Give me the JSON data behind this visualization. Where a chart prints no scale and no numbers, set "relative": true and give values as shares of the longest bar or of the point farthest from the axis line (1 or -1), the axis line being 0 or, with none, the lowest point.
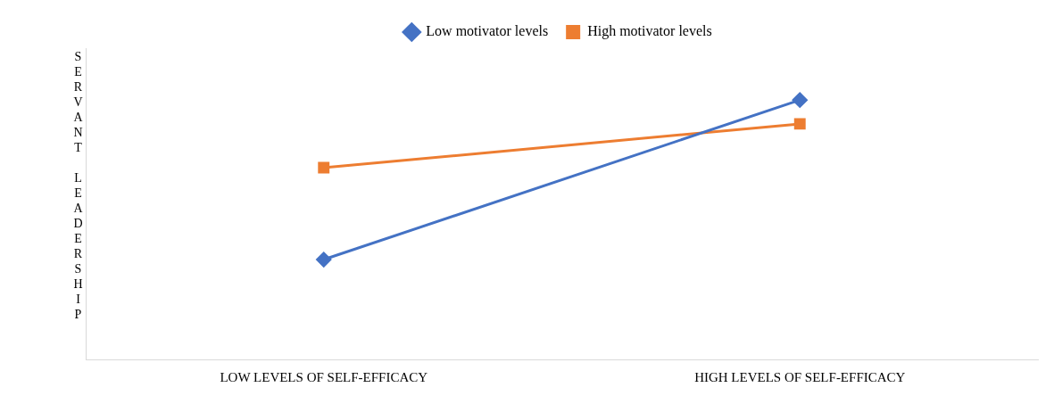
{
  "chart_data": {
    "type": "line",
    "ylabel": "SERVANT LEADERSHIP",
    "categories": [
      "LOW LEVELS OF SELF-EFFICACY",
      "HIGH LEVELS OF SELF-EFFICACY"
    ],
    "relative": true,
    "grid": false,
    "legend": "top",
    "series": [
      {
        "name": "Low motivator levels",
        "color": "#4472c4",
        "marker": "diamond",
        "values": [
          0.385,
          1
        ]
      },
      {
        "name": "High motivator levels",
        "color": "#ed7d31",
        "marker": "square",
        "values": [
          0.739,
          0.908
        ]
      }
    ]
  }
}
